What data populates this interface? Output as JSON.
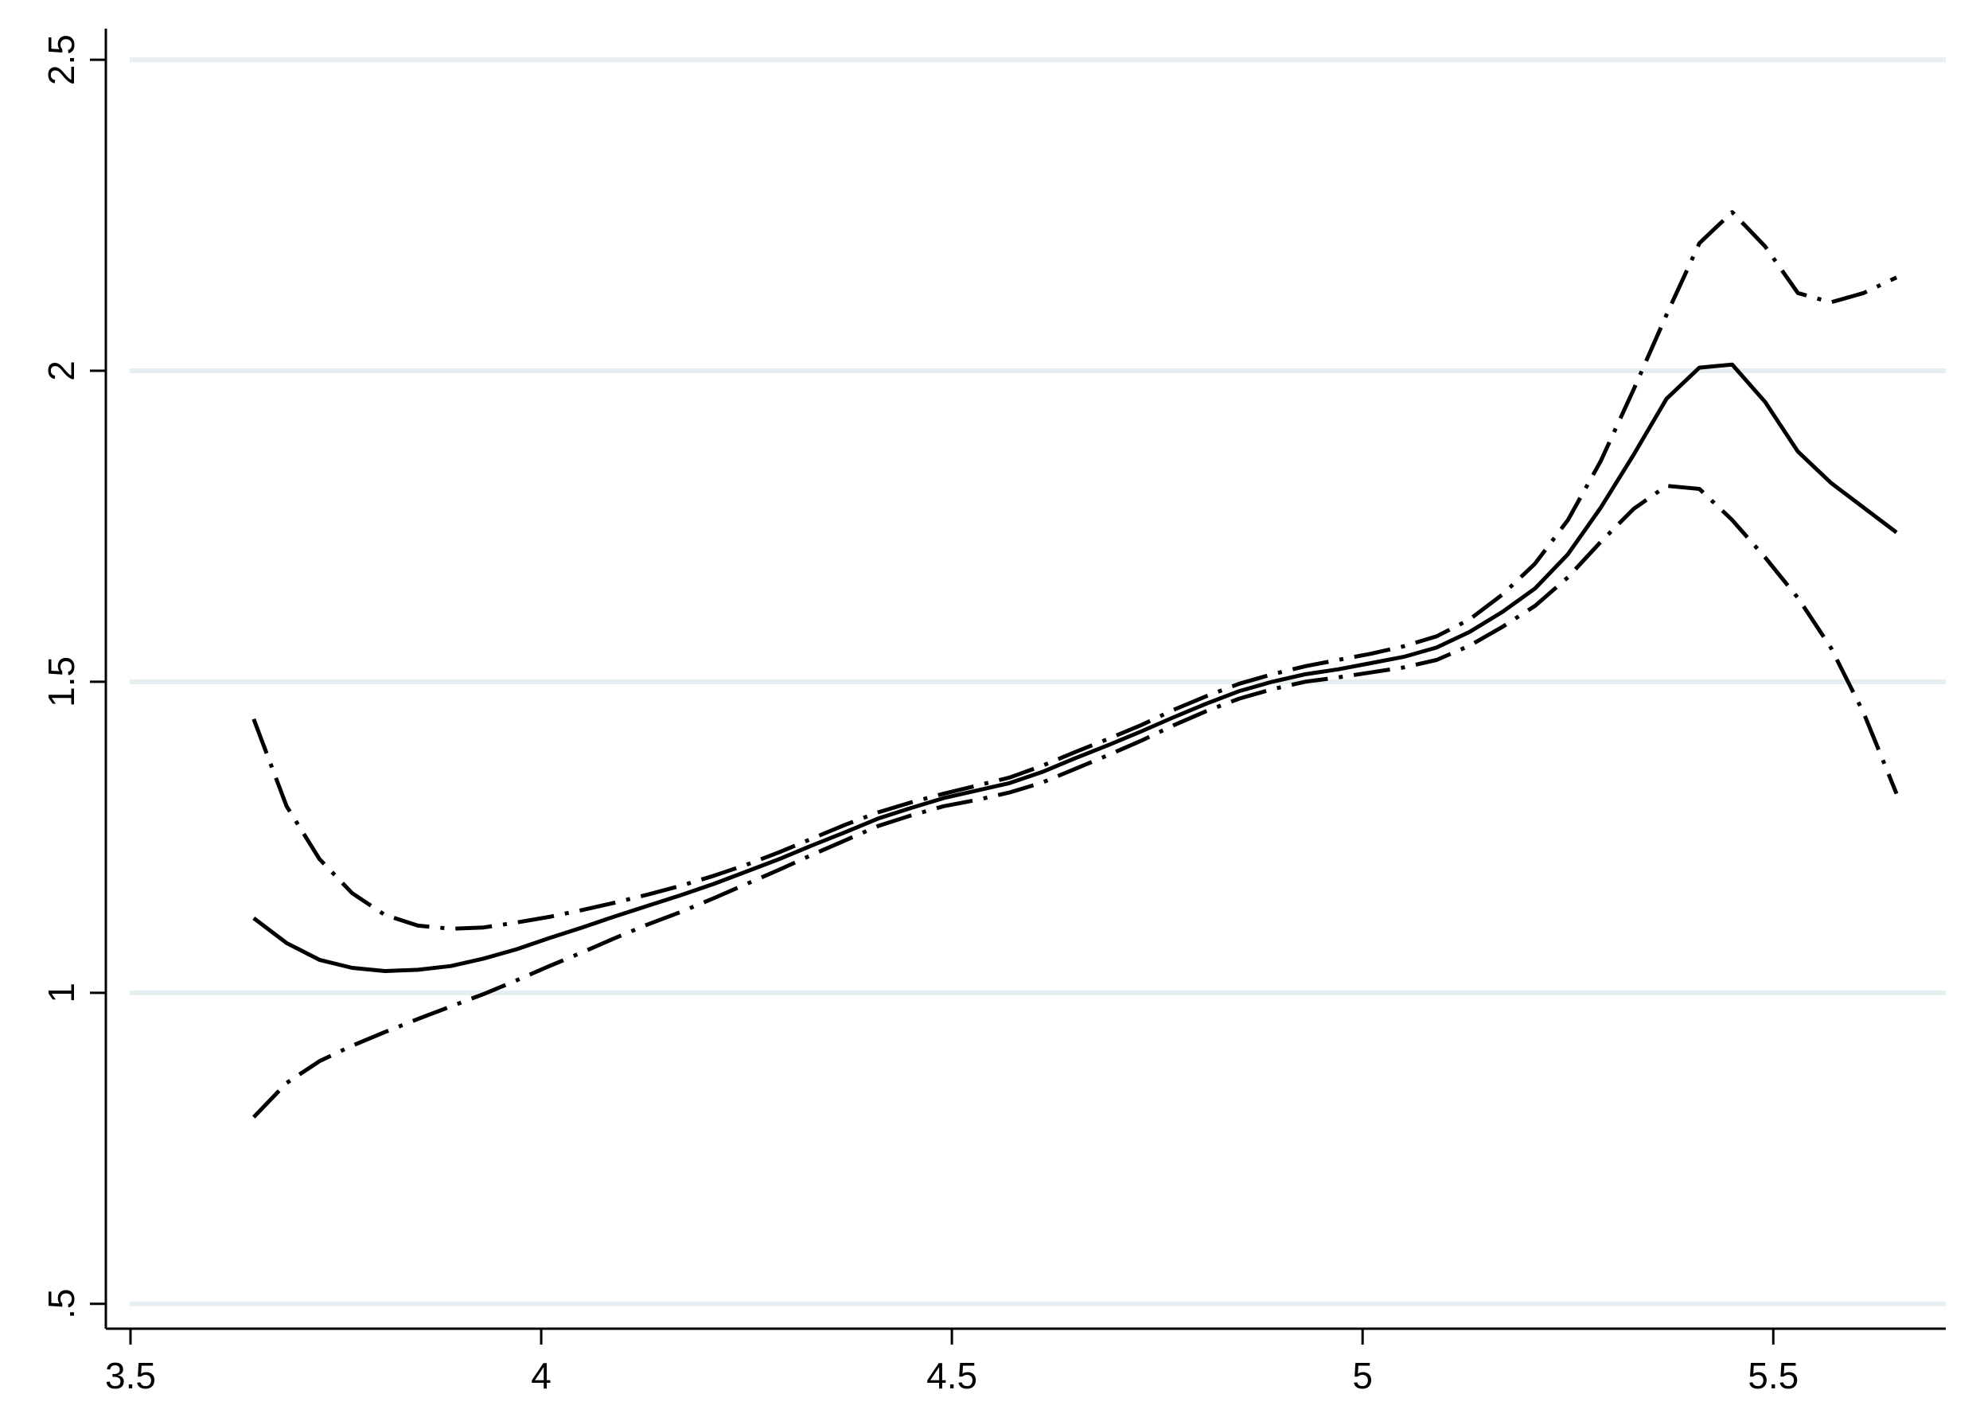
{
  "chart_data": {
    "type": "line",
    "title": "",
    "xlabel": "",
    "ylabel": "",
    "xlim": [
      3.47,
      5.71
    ],
    "ylim": [
      0.46,
      2.55
    ],
    "grid": true,
    "legend": "none",
    "x_ticks": [
      {
        "value": 3.5,
        "label": "3.5"
      },
      {
        "value": 4,
        "label": "4"
      },
      {
        "value": 4.5,
        "label": "4.5"
      },
      {
        "value": 5,
        "label": "5"
      },
      {
        "value": 5.5,
        "label": "5.5"
      }
    ],
    "y_ticks": [
      {
        "value": 0.5,
        "label": ".5"
      },
      {
        "value": 1,
        "label": "1"
      },
      {
        "value": 1.5,
        "label": "1.5"
      },
      {
        "value": 2,
        "label": "2"
      },
      {
        "value": 2.5,
        "label": "2.5"
      }
    ],
    "colors": {
      "line": "#000000",
      "grid": "#e6eef1",
      "axis": "#000000"
    },
    "series": [
      {
        "style": "solid",
        "x": [
          3.65,
          3.69,
          3.73,
          3.77,
          3.81,
          3.85,
          3.89,
          3.93,
          3.97,
          4.01,
          4.05,
          4.09,
          4.13,
          4.17,
          4.21,
          4.25,
          4.29,
          4.33,
          4.37,
          4.41,
          4.45,
          4.49,
          4.53,
          4.57,
          4.61,
          4.65,
          4.69,
          4.73,
          4.77,
          4.81,
          4.85,
          4.89,
          4.93,
          4.97,
          5.01,
          5.05,
          5.09,
          5.13,
          5.17,
          5.21,
          5.25,
          5.29,
          5.33,
          5.37,
          5.41,
          5.45,
          5.49,
          5.53,
          5.57,
          5.61,
          5.65
        ],
        "y": [
          1.12,
          1.08,
          1.053,
          1.04,
          1.035,
          1.037,
          1.043,
          1.055,
          1.07,
          1.088,
          1.105,
          1.123,
          1.14,
          1.157,
          1.175,
          1.195,
          1.215,
          1.237,
          1.258,
          1.28,
          1.297,
          1.313,
          1.325,
          1.337,
          1.355,
          1.377,
          1.398,
          1.42,
          1.443,
          1.465,
          1.485,
          1.5,
          1.512,
          1.52,
          1.53,
          1.54,
          1.555,
          1.58,
          1.612,
          1.65,
          1.705,
          1.78,
          1.865,
          1.955,
          2.005,
          2.01,
          1.95,
          1.87,
          1.82,
          1.78,
          1.74
        ]
      },
      {
        "style": "dash-dot-upper",
        "x": [
          3.65,
          3.69,
          3.73,
          3.77,
          3.81,
          3.85,
          3.89,
          3.93,
          3.97,
          4.01,
          4.05,
          4.09,
          4.13,
          4.17,
          4.21,
          4.25,
          4.29,
          4.33,
          4.37,
          4.41,
          4.45,
          4.49,
          4.53,
          4.57,
          4.61,
          4.65,
          4.69,
          4.73,
          4.77,
          4.81,
          4.85,
          4.89,
          4.93,
          4.97,
          5.01,
          5.05,
          5.09,
          5.13,
          5.17,
          5.21,
          5.25,
          5.29,
          5.33,
          5.37,
          5.41,
          5.45,
          5.49,
          5.53,
          5.57,
          5.61,
          5.65
        ],
        "y": [
          1.44,
          1.3,
          1.215,
          1.16,
          1.125,
          1.108,
          1.103,
          1.105,
          1.113,
          1.122,
          1.133,
          1.145,
          1.158,
          1.172,
          1.188,
          1.206,
          1.226,
          1.248,
          1.27,
          1.29,
          1.306,
          1.32,
          1.333,
          1.346,
          1.365,
          1.387,
          1.408,
          1.43,
          1.455,
          1.477,
          1.497,
          1.512,
          1.525,
          1.535,
          1.545,
          1.557,
          1.573,
          1.6,
          1.64,
          1.69,
          1.76,
          1.855,
          1.97,
          2.09,
          2.205,
          2.255,
          2.2,
          2.125,
          2.11,
          2.125,
          2.15
        ]
      },
      {
        "style": "dash-dot-lower",
        "x": [
          3.65,
          3.69,
          3.73,
          3.77,
          3.81,
          3.85,
          3.89,
          3.93,
          3.97,
          4.01,
          4.05,
          4.09,
          4.13,
          4.17,
          4.21,
          4.25,
          4.29,
          4.33,
          4.37,
          4.41,
          4.45,
          4.49,
          4.53,
          4.57,
          4.61,
          4.65,
          4.69,
          4.73,
          4.77,
          4.81,
          4.85,
          4.89,
          4.93,
          4.97,
          5.01,
          5.05,
          5.09,
          5.13,
          5.17,
          5.21,
          5.25,
          5.29,
          5.33,
          5.37,
          5.41,
          5.45,
          5.49,
          5.53,
          5.57,
          5.61,
          5.65
        ],
        "y": [
          0.8,
          0.855,
          0.89,
          0.915,
          0.937,
          0.958,
          0.978,
          0.998,
          1.02,
          1.043,
          1.065,
          1.088,
          1.11,
          1.13,
          1.152,
          1.175,
          1.198,
          1.222,
          1.245,
          1.268,
          1.285,
          1.3,
          1.31,
          1.322,
          1.338,
          1.36,
          1.382,
          1.405,
          1.43,
          1.453,
          1.473,
          1.488,
          1.5,
          1.507,
          1.515,
          1.523,
          1.535,
          1.558,
          1.588,
          1.622,
          1.668,
          1.725,
          1.778,
          1.815,
          1.81,
          1.76,
          1.7,
          1.635,
          1.555,
          1.45,
          1.32
        ]
      }
    ]
  }
}
